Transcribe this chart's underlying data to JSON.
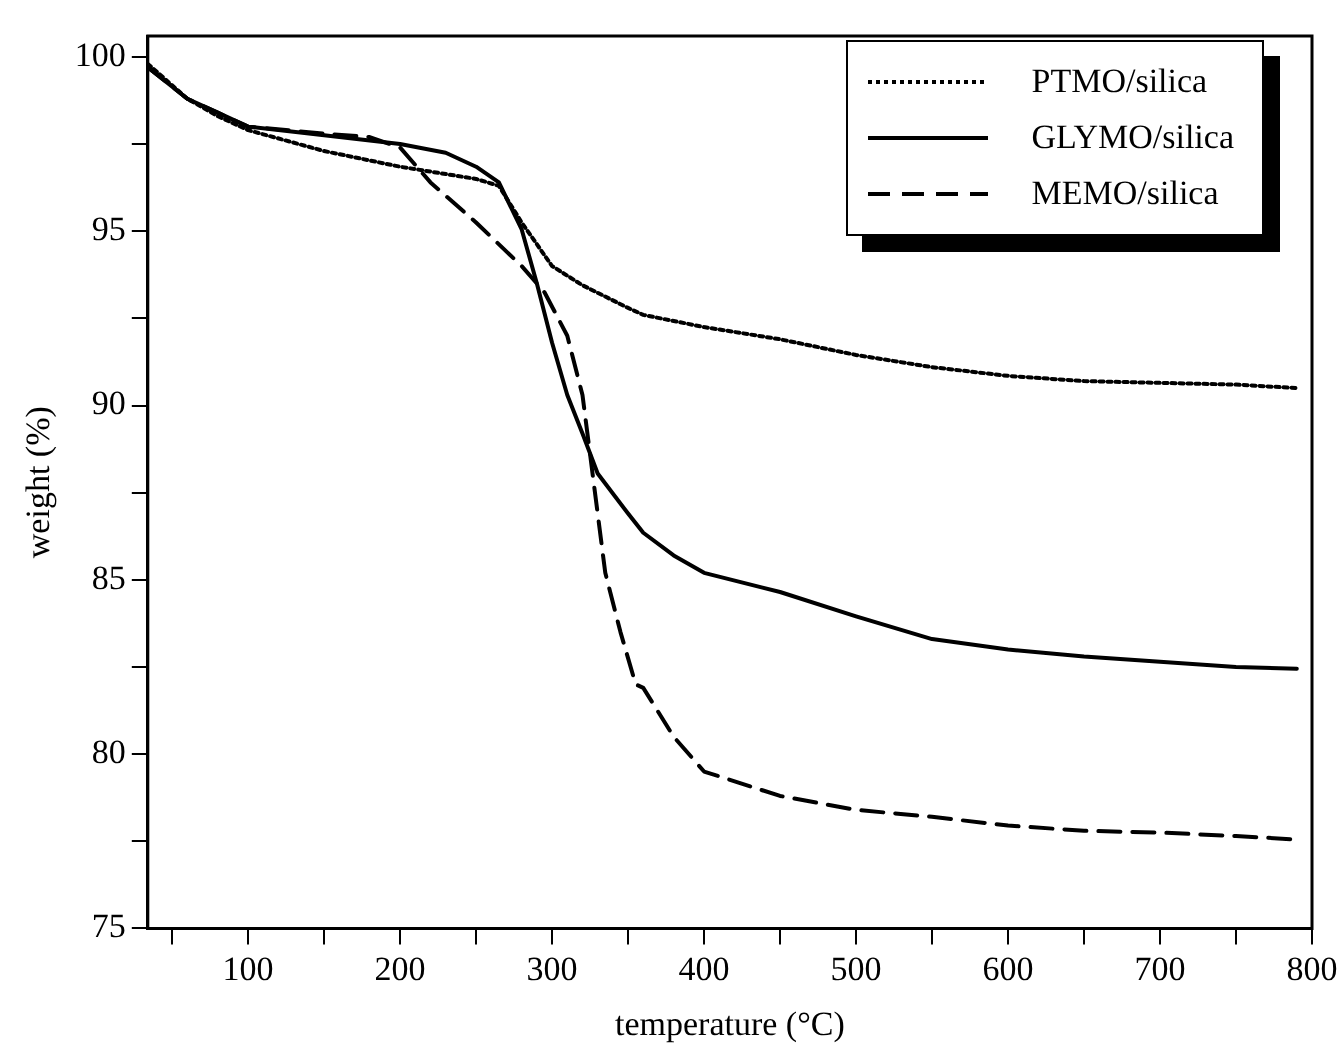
{
  "chart_data": {
    "type": "line",
    "xlabel": "temperature (°C)",
    "ylabel": "weight (%)",
    "xlim": [
      34,
      800
    ],
    "ylim": [
      75,
      100.6
    ],
    "xticks": [
      {
        "value": 50,
        "label": null
      },
      100,
      {
        "value": 150,
        "label": null
      },
      200,
      {
        "value": 250,
        "label": null
      },
      300,
      {
        "value": 350,
        "label": null
      },
      400,
      {
        "value": 450,
        "label": null
      },
      500,
      {
        "value": 550,
        "label": null
      },
      600,
      {
        "value": 650,
        "label": null
      },
      700,
      {
        "value": 750,
        "label": null
      },
      800
    ],
    "yticks": [
      75,
      {
        "value": 77.5,
        "label": null
      },
      80,
      {
        "value": 82.5,
        "label": null
      },
      85,
      {
        "value": 87.5,
        "label": null
      },
      90,
      {
        "value": 92.5,
        "label": null
      },
      95,
      {
        "value": 97.5,
        "label": null
      },
      100
    ],
    "grid": false,
    "legend": "top right",
    "marker": "none",
    "series": [
      {
        "name": "PTMO/silica",
        "color": "#000000",
        "line_style": "dotted",
        "x": [
          34,
          60,
          80,
          100,
          150,
          200,
          250,
          265,
          280,
          300,
          320,
          350,
          360,
          400,
          450,
          500,
          550,
          600,
          650,
          700,
          750,
          790
        ],
        "values": [
          99.8,
          98.8,
          98.3,
          97.9,
          97.3,
          96.85,
          96.5,
          96.3,
          95.25,
          94.0,
          93.45,
          92.8,
          92.6,
          92.25,
          91.9,
          91.45,
          91.1,
          90.85,
          90.7,
          90.65,
          90.6,
          90.5
        ]
      },
      {
        "name": "GLYMO/silica",
        "color": "#000000",
        "line_style": "solid",
        "x": [
          34,
          60,
          80,
          100,
          140,
          200,
          230,
          250,
          265,
          280,
          290,
          300,
          310,
          320,
          330,
          350,
          360,
          380,
          400,
          450,
          500,
          550,
          600,
          650,
          700,
          750,
          790
        ],
        "values": [
          99.7,
          98.8,
          98.4,
          98.0,
          97.8,
          97.5,
          97.25,
          96.85,
          96.4,
          95.05,
          93.5,
          91.8,
          90.3,
          89.2,
          88.05,
          86.9,
          86.35,
          85.7,
          85.2,
          84.65,
          83.95,
          83.3,
          83.0,
          82.8,
          82.65,
          82.5,
          82.45
        ]
      },
      {
        "name": "MEMO/silica",
        "color": "#000000",
        "line_style": "dashed",
        "x": [
          34,
          60,
          80,
          100,
          150,
          180,
          200,
          220,
          250,
          280,
          295,
          310,
          320,
          325,
          330,
          335,
          345,
          355,
          360,
          380,
          400,
          450,
          500,
          550,
          600,
          650,
          700,
          750,
          790
        ],
        "values": [
          99.7,
          98.8,
          98.4,
          98.0,
          97.8,
          97.7,
          97.4,
          96.4,
          95.25,
          94.0,
          93.25,
          92.0,
          90.3,
          88.6,
          86.9,
          85.2,
          83.5,
          82.0,
          81.9,
          80.5,
          79.5,
          78.8,
          78.4,
          78.2,
          77.95,
          77.8,
          77.75,
          77.65,
          77.55
        ]
      }
    ]
  }
}
